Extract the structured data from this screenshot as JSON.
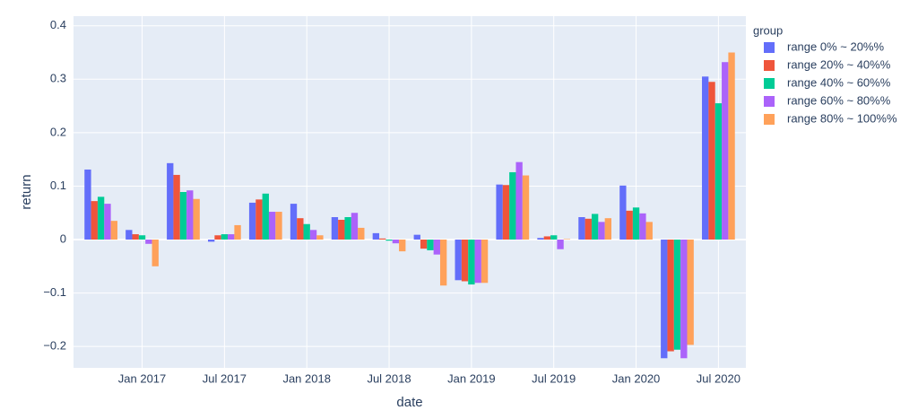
{
  "chart_data": {
    "type": "bar",
    "xlabel": "date",
    "ylabel": "return",
    "legend_title": "group",
    "legend_position": "right",
    "x": [
      "2016-10",
      "2017-01",
      "2017-04",
      "2017-07",
      "2017-10",
      "2018-01",
      "2018-04",
      "2018-07",
      "2018-10",
      "2019-01",
      "2019-04",
      "2019-07",
      "2019-10",
      "2020-01",
      "2020-04",
      "2020-07"
    ],
    "series": [
      {
        "name": "range 0% ~ 20%%",
        "color": "#636efa",
        "values": [
          0.131,
          0.018,
          0.143,
          -0.004,
          0.069,
          0.067,
          0.042,
          0.012,
          0.009,
          -0.076,
          0.103,
          0.003,
          0.042,
          0.101,
          -0.222,
          0.305
        ]
      },
      {
        "name": "range 20% ~ 40%%",
        "color": "#ef553b",
        "values": [
          0.072,
          0.01,
          0.121,
          0.008,
          0.075,
          0.04,
          0.037,
          0.002,
          -0.017,
          -0.078,
          0.102,
          0.006,
          0.039,
          0.054,
          -0.209,
          0.295
        ]
      },
      {
        "name": "range 40% ~ 60%%",
        "color": "#00cc96",
        "values": [
          0.08,
          0.008,
          0.089,
          0.01,
          0.086,
          0.029,
          0.042,
          -0.002,
          -0.02,
          -0.084,
          0.126,
          0.008,
          0.048,
          0.06,
          -0.206,
          0.255
        ]
      },
      {
        "name": "range 60% ~ 80%%",
        "color": "#ab63fa",
        "values": [
          0.067,
          -0.008,
          0.092,
          0.01,
          0.052,
          0.018,
          0.05,
          -0.007,
          -0.028,
          -0.081,
          0.145,
          -0.018,
          0.033,
          0.049,
          -0.222,
          0.332
        ]
      },
      {
        "name": "range 80% ~ 100%%",
        "color": "#ffa15a",
        "values": [
          0.035,
          -0.05,
          0.076,
          0.027,
          0.052,
          0.008,
          0.022,
          -0.022,
          -0.086,
          -0.081,
          0.12,
          0.001,
          0.04,
          0.033,
          -0.197,
          0.35
        ]
      }
    ],
    "xlim": [
      "2016-08",
      "2020-09"
    ],
    "xticks": [
      {
        "value": "2017-01",
        "label": "Jan 2017"
      },
      {
        "value": "2017-07",
        "label": "Jul 2017"
      },
      {
        "value": "2018-01",
        "label": "Jan 2018"
      },
      {
        "value": "2018-07",
        "label": "Jul 2018"
      },
      {
        "value": "2019-01",
        "label": "Jan 2019"
      },
      {
        "value": "2019-07",
        "label": "Jul 2019"
      },
      {
        "value": "2020-01",
        "label": "Jan 2020"
      },
      {
        "value": "2020-07",
        "label": "Jul 2020"
      }
    ],
    "ylim": [
      -0.24,
      0.418
    ],
    "yticks": [
      {
        "value": -0.2,
        "label": "−0.2"
      },
      {
        "value": -0.1,
        "label": "−0.1"
      },
      0,
      0.1,
      0.2,
      0.3,
      0.4
    ],
    "grid": true
  }
}
